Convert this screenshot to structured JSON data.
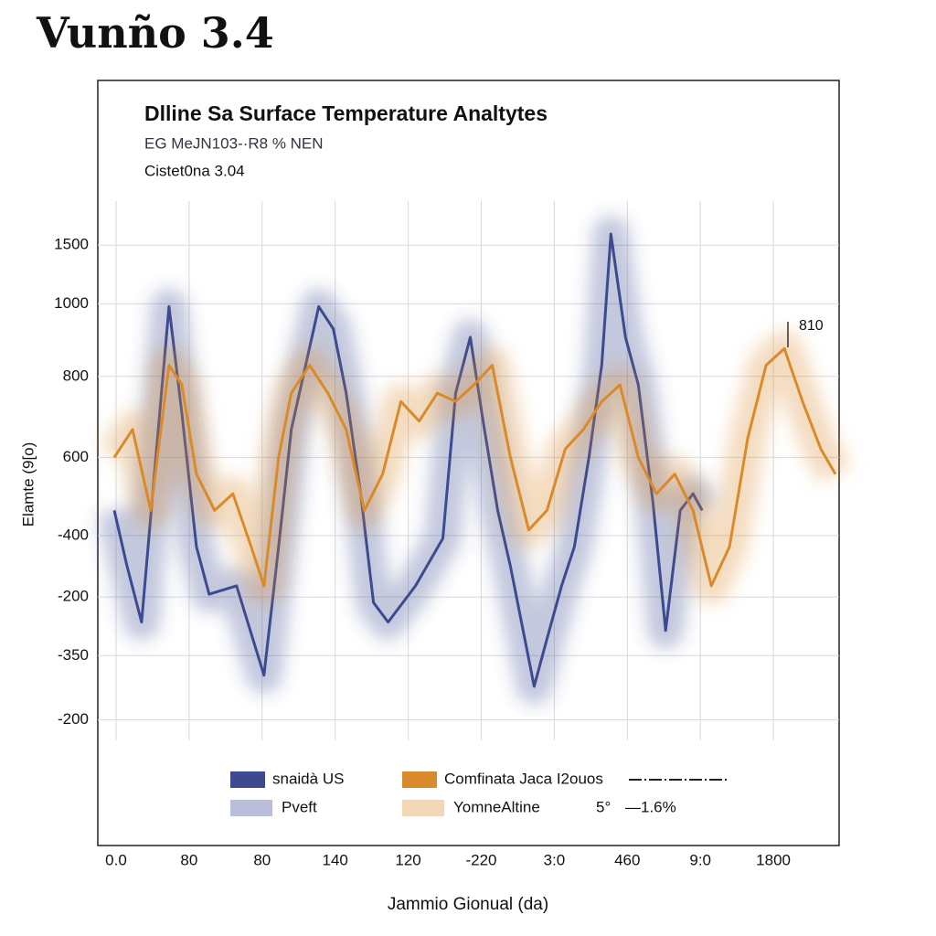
{
  "header": "Vunño 3.4",
  "chart_data": {
    "type": "line",
    "title": "Dlline Sa Surface Temperature Analtytes",
    "subtitle": "EG MeJN103-·R8 % NEN",
    "subtitle2": "Cistet0na 3.04",
    "y_label": "Elamte (9[o)",
    "x_label": "Jammio Gionual (da)",
    "annotation": "810",
    "xlim": [
      -50,
      1980
    ],
    "xticks": [
      {
        "value": 0,
        "label": "0.0"
      },
      {
        "value": 200,
        "label": "80"
      },
      {
        "value": 400,
        "label": "80"
      },
      {
        "value": 600,
        "label": "140"
      },
      {
        "value": 800,
        "label": "120"
      },
      {
        "value": 1000,
        "label": "-220"
      },
      {
        "value": 1200,
        "label": "3:0"
      },
      {
        "value": 1400,
        "label": "460"
      },
      {
        "value": 1600,
        "label": "9:0"
      },
      1800
    ],
    "ylim": [
      -650,
      2090
    ],
    "yticks": [
      1500,
      {
        "value": 1290,
        "label": "1000"
      },
      {
        "value": 1030,
        "label": "800"
      },
      {
        "value": 740,
        "label": "600"
      },
      {
        "value": 460,
        "label": "-400"
      },
      {
        "value": 240,
        "label": "-200"
      },
      {
        "value": 30,
        "label": "-350"
      },
      -200
    ],
    "grid": true,
    "series": [
      {
        "name": "snaidà US",
        "color": "#3d4a8f",
        "x": [
          -5,
          30,
          70,
          105,
          145,
          180,
          220,
          255,
          330,
          405,
          445,
          480,
          555,
          595,
          630,
          670,
          705,
          745,
          820,
          895,
          930,
          970,
          1005,
          1045,
          1080,
          1145,
          1180,
          1220,
          1255,
          1295,
          1330,
          1355,
          1395,
          1430,
          1470,
          1505,
          1545,
          1580,
          1605
        ],
        "values": [
          550,
          350,
          150,
          680,
          1280,
          900,
          420,
          250,
          280,
          -40,
          420,
          840,
          1280,
          1200,
          970,
          610,
          220,
          150,
          280,
          450,
          970,
          1170,
          870,
          550,
          350,
          -80,
          90,
          280,
          420,
          740,
          1070,
          1540,
          1170,
          1000,
          580,
          120,
          550,
          610,
          550
        ]
      },
      {
        "name": "Comfinata Jaca I2ouos",
        "color": "#d98a2a",
        "x": [
          -5,
          45,
          95,
          145,
          180,
          220,
          270,
          320,
          370,
          405,
          445,
          480,
          530,
          580,
          630,
          680,
          730,
          780,
          830,
          880,
          930,
          980,
          1030,
          1080,
          1130,
          1180,
          1230,
          1280,
          1330,
          1380,
          1430,
          1480,
          1530,
          1580,
          1630,
          1680,
          1730,
          1780,
          1830,
          1880,
          1930,
          1970
        ],
        "values": [
          740,
          840,
          550,
          1070,
          1000,
          680,
          550,
          610,
          420,
          280,
          740,
          970,
          1070,
          970,
          840,
          550,
          680,
          940,
          870,
          970,
          940,
          1000,
          1070,
          740,
          480,
          550,
          770,
          840,
          940,
          1000,
          740,
          610,
          680,
          550,
          280,
          420,
          810,
          1070,
          1130,
          940,
          770,
          680
        ]
      }
    ],
    "legend_notes": [
      {
        "name": "Pveft",
        "color": "#b9bedb"
      },
      {
        "name": "YomneAltine",
        "color": "#f3d6b6"
      },
      {
        "name": "5°"
      },
      {
        "name": "—1.6%"
      }
    ]
  }
}
